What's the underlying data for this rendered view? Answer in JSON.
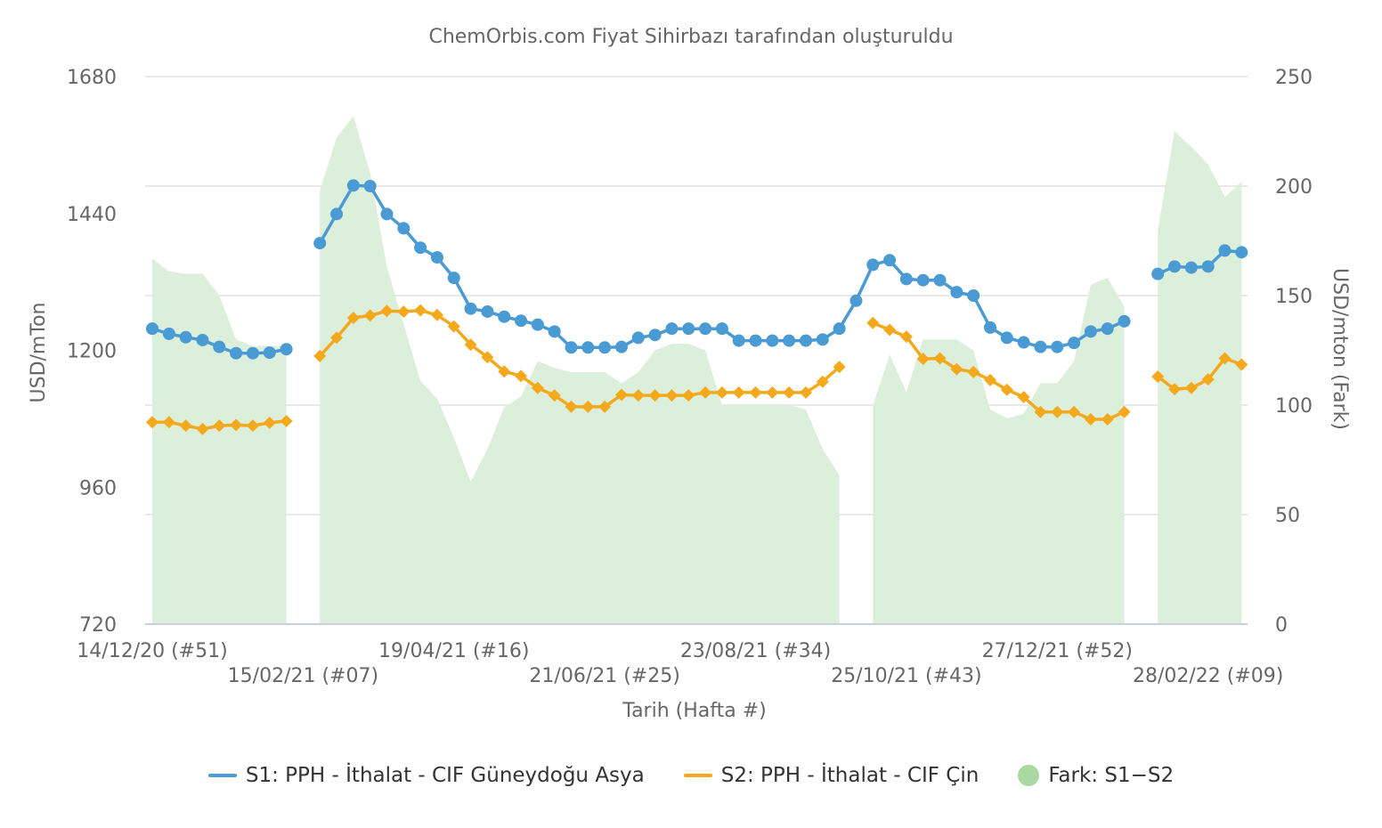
{
  "credit": "ChemOrbis.com Fiyat Sihirbazı tarafından oluşturuldu",
  "colors": {
    "s1": "#4a9ad4",
    "s2": "#f4a81c",
    "diff_fill": "#dcefda",
    "diff_legend": "#a9d8a0",
    "grid": "#e2e2e2",
    "text": "#666666"
  },
  "chart_data": {
    "type": "line",
    "xlabel": "Tarih (Hafta #)",
    "ylabel_left": "USD/mTon",
    "ylabel_right": "USD/mton (Fark)",
    "ylim_left": [
      720,
      1680
    ],
    "yticks_left": [
      720,
      960,
      1200,
      1440,
      1680
    ],
    "ylim_right": [
      0,
      250
    ],
    "yticks_right": [
      0,
      50,
      100,
      150,
      200,
      250
    ],
    "grid": true,
    "legend_position": "bottom",
    "x_tick_labels": [
      {
        "week": 0,
        "label": "14/12/20 (#51)"
      },
      {
        "week": 9,
        "label": "15/02/21 (#07)"
      },
      {
        "week": 18,
        "label": "19/04/21 (#16)"
      },
      {
        "week": 27,
        "label": "21/06/21 (#25)"
      },
      {
        "week": 36,
        "label": "23/08/21 (#34)"
      },
      {
        "week": 45,
        "label": "25/10/21 (#43)"
      },
      {
        "week": 54,
        "label": "27/12/21 (#52)"
      },
      {
        "week": 63,
        "label": "28/02/22 (#09)"
      }
    ],
    "series": [
      {
        "name": "S1: PPH - İthalat - CIF Güneydoğu Asya",
        "values": [
          1238,
          1229,
          1223,
          1218,
          1206,
          1195,
          1195,
          1196,
          1202,
          null,
          1388,
          1439,
          1489,
          1488,
          1439,
          1414,
          1380,
          1363,
          1327,
          1273,
          1268,
          1259,
          1252,
          1245,
          1233,
          1205,
          1205,
          1205,
          1206,
          1222,
          1227,
          1238,
          1238,
          1238,
          1238,
          1217,
          1217,
          1217,
          1217,
          1217,
          1219,
          1238,
          1287,
          1350,
          1358,
          1325,
          1323,
          1323,
          1302,
          1296,
          1240,
          1222,
          1214,
          1206,
          1206,
          1213,
          1233,
          1238,
          1251,
          null,
          1334,
          1347,
          1345,
          1347,
          1375,
          1372
        ]
      },
      {
        "name": "S2: PPH - İthalat - CIF Çin",
        "values": [
          1074,
          1074,
          1068,
          1062,
          1068,
          1069,
          1068,
          1073,
          1076,
          null,
          1190,
          1222,
          1257,
          1261,
          1269,
          1268,
          1270,
          1262,
          1242,
          1210,
          1188,
          1163,
          1155,
          1134,
          1121,
          1101,
          1101,
          1101,
          1122,
          1121,
          1121,
          1121,
          1121,
          1126,
          1126,
          1126,
          1126,
          1126,
          1126,
          1126,
          1145,
          1171,
          null,
          1248,
          1236,
          1224,
          1185,
          1186,
          1167,
          1162,
          1148,
          1131,
          1118,
          1092,
          1092,
          1092,
          1079,
          1079,
          1092,
          null,
          1154,
          1132,
          1134,
          1149,
          1186,
          1175
        ]
      },
      {
        "name": "Fark: S1−S2",
        "type": "area",
        "values": [
          167,
          161,
          160,
          160,
          150,
          130,
          127,
          127,
          127,
          null,
          198,
          222,
          232,
          206,
          163,
          137,
          111,
          103,
          85,
          65,
          80,
          99,
          104,
          120,
          117,
          115,
          115,
          115,
          110,
          115,
          125,
          128,
          128,
          125,
          100,
          100,
          100,
          100,
          100,
          98,
          80,
          68,
          null,
          100,
          123,
          106,
          130,
          130,
          130,
          125,
          98,
          94,
          96,
          110,
          110,
          120,
          155,
          158,
          145,
          null,
          180,
          225,
          218,
          210,
          195,
          202
        ]
      }
    ]
  }
}
